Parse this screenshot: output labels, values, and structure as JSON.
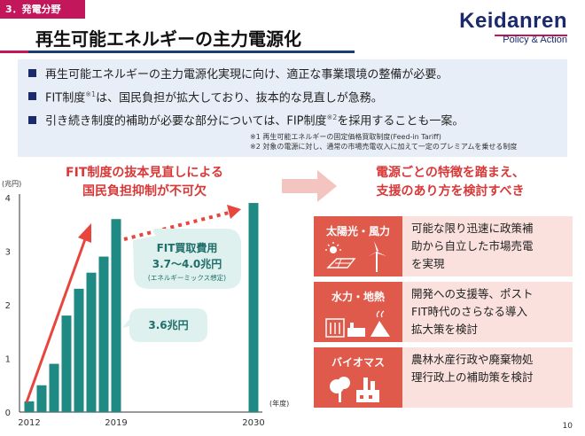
{
  "section_tag": "3．発電分野",
  "title": "再生可能エネルギーの主力電源化",
  "logo": {
    "name": "Keidanren",
    "sub": "Policy & Action"
  },
  "points": [
    {
      "text": "再生可能エネルギーの主力電源化実現に向け、適正な事業環境の整備が必要。",
      "sup": ""
    },
    {
      "text": "FIT制度",
      "sup": "※1",
      "text2": "は、国民負担が拡大しており、抜本的な見直しが急務。"
    },
    {
      "text": "引き続き制度的補助が必要な部分については、FIP制度",
      "sup": "※2",
      "text2": "を採用することも一案。"
    }
  ],
  "notes": [
    "※1 再生可能エネルギーの固定価格買取制度(Feed-in Tariff)",
    "※2 対象の電源に対し、通常の市場売電収入に加えて一定のプレミアムを乗せる制度"
  ],
  "left_heading": [
    "FIT制度の抜本見直しによる",
    "国民負担抑制が不可欠"
  ],
  "right_heading": [
    "電源ごとの特徴を踏まえ、",
    "支援のあり方を検討すべき"
  ],
  "chart_data": {
    "type": "bar",
    "ylabel": "(兆円)",
    "xlabel": "(年度)",
    "ylim": [
      0,
      4
    ],
    "yticks": [
      "0",
      "1",
      "2",
      "3",
      "4"
    ],
    "x": [
      2012,
      2013,
      2014,
      2015,
      2016,
      2017,
      2018,
      2019,
      2030
    ],
    "xtick_labels": [
      "2012",
      "2019",
      "2030"
    ],
    "values": [
      0.2,
      0.5,
      0.9,
      1.8,
      2.3,
      2.6,
      2.9,
      3.6,
      3.9
    ],
    "bar_color": "#1f8a84",
    "callout_fit": {
      "title": "FIT買取費用",
      "value": "3.7～4.0兆円",
      "note": "(エネルギーミックス想定)"
    },
    "callout_current": "3.6兆円"
  },
  "rows": [
    {
      "category": "太陽光・風力",
      "desc": [
        "可能な限り迅速に政策補",
        "助から自立した市場売電",
        "を実現"
      ]
    },
    {
      "category": "水力・地熱",
      "desc": [
        "開発への支援等、ポスト",
        "FIT時代のさらなる導入",
        "拡大策を検討"
      ]
    },
    {
      "category": "バイオマス",
      "desc": [
        "農林水産行政や廃棄物処",
        "理行政上の補助策を検討"
      ]
    }
  ],
  "page_number": "10"
}
